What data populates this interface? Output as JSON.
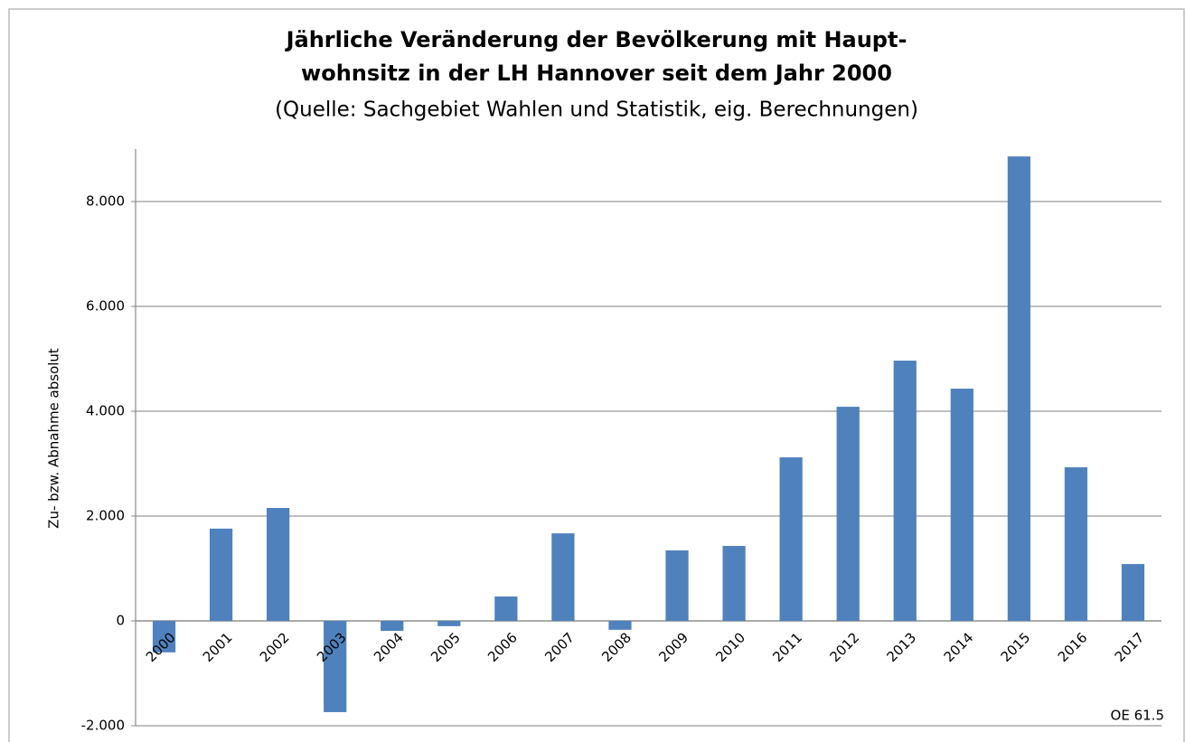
{
  "chart_data": {
    "type": "bar",
    "title": [
      "Jährliche Veränderung der Bevölkerung mit Haupt-",
      "wohnsitz in der LH Hannover seit dem Jahr 2000"
    ],
    "subtitle": "(Quelle: Sachgebiet Wahlen und Statistik, eig. Berechnungen)",
    "y_label": "Zu- bzw. Abnahme absolut",
    "annotation": "OE 61.5",
    "categories": [
      "2000",
      "2001",
      "2002",
      "2003",
      "2004",
      "2005",
      "2006",
      "2007",
      "2008",
      "2009",
      "2010",
      "2011",
      "2012",
      "2013",
      "2014",
      "2015",
      "2016",
      "2017"
    ],
    "values": [
      -600,
      1760,
      2155,
      -1740,
      -190,
      -100,
      465,
      1670,
      -170,
      1345,
      1430,
      3120,
      4085,
      4965,
      4430,
      8860,
      2930,
      1085
    ],
    "color": "#4f81bd",
    "ylim": [
      -2000,
      9000
    ],
    "yticks": [
      {
        "value": -2000,
        "label": "-2.000"
      },
      0,
      {
        "value": 2000,
        "label": "2.000"
      },
      {
        "value": 4000,
        "label": "4.000"
      },
      {
        "value": 6000,
        "label": "6.000"
      },
      {
        "value": 8000,
        "label": "8.000"
      }
    ],
    "grid": true
  }
}
